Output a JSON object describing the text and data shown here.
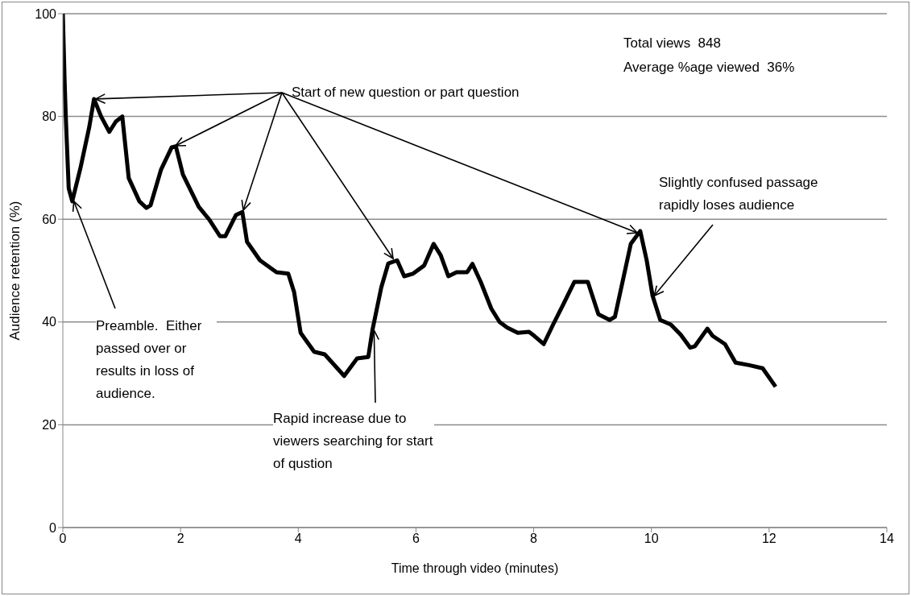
{
  "chart_data": {
    "type": "line",
    "xlabel": "Time through video (minutes)",
    "ylabel": "Audience retention (%)",
    "x": [
      0,
      0.03,
      0.05,
      0.1,
      0.16,
      0.3,
      0.45,
      0.53,
      0.65,
      0.79,
      0.9,
      1.01,
      1.12,
      1.3,
      1.42,
      1.49,
      1.67,
      1.85,
      1.92,
      2.04,
      2.31,
      2.49,
      2.67,
      2.76,
      2.94,
      3.05,
      3.13,
      3.35,
      3.63,
      3.83,
      3.93,
      4.04,
      4.27,
      4.45,
      4.78,
      5.0,
      5.19,
      5.26,
      5.41,
      5.53,
      5.68,
      5.8,
      5.95,
      6.14,
      6.3,
      6.42,
      6.55,
      6.69,
      6.87,
      6.96,
      7.1,
      7.28,
      7.42,
      7.55,
      7.73,
      7.92,
      8.01,
      8.17,
      8.33,
      8.51,
      8.69,
      8.92,
      9.1,
      9.29,
      9.38,
      9.65,
      9.81,
      9.92,
      10.02,
      10.15,
      10.33,
      10.5,
      10.66,
      10.74,
      10.95,
      11.04,
      11.25,
      11.43,
      11.66,
      11.89,
      12.11
    ],
    "values": [
      100,
      87,
      80,
      66,
      63.5,
      70,
      78,
      83.4,
      80,
      77,
      79,
      80,
      68,
      63.5,
      62.2,
      62.7,
      69.7,
      74,
      74.2,
      68.7,
      62.4,
      59.9,
      56.7,
      56.7,
      60.8,
      61.4,
      55.6,
      52,
      49.7,
      49.4,
      45.8,
      37.9,
      34.2,
      33.7,
      29.5,
      32.9,
      33.2,
      38.4,
      46.7,
      51.4,
      52,
      48.9,
      49.4,
      51,
      55.2,
      53,
      48.9,
      49.7,
      49.7,
      51.3,
      47.8,
      42.6,
      40,
      38.9,
      37.9,
      38.1,
      37.3,
      35.7,
      39.5,
      43.6,
      47.8,
      47.8,
      41.5,
      40.4,
      41,
      55.2,
      57.7,
      52,
      45.1,
      40.4,
      39.5,
      37.5,
      35,
      35.3,
      38.7,
      37.3,
      35.7,
      32.1,
      31.6,
      31,
      27.4
    ],
    "color": "#000000",
    "xlim": [
      0,
      14
    ],
    "xticks": [
      0,
      2,
      4,
      6,
      8,
      10,
      12,
      14
    ],
    "ylim": [
      0,
      100
    ],
    "yticks": [
      0,
      20,
      40,
      60,
      80,
      100
    ],
    "grid": "y",
    "annotations": [
      {
        "text": "Start of new question or part question",
        "x": 0.53,
        "y": 83.4
      },
      {
        "text": "Preamble.  Either passed over or results in loss of audience.",
        "x": 0.16,
        "y": 63.5
      },
      {
        "text": "Rapid increase due to viewers searching for start of qustion",
        "x": 5.26,
        "y": 38.4
      },
      {
        "text": "Slightly confused passage rapidly loses audience",
        "x": 10.02,
        "y": 45.1
      },
      "Total views  848",
      "Average %age viewed  36%"
    ]
  }
}
